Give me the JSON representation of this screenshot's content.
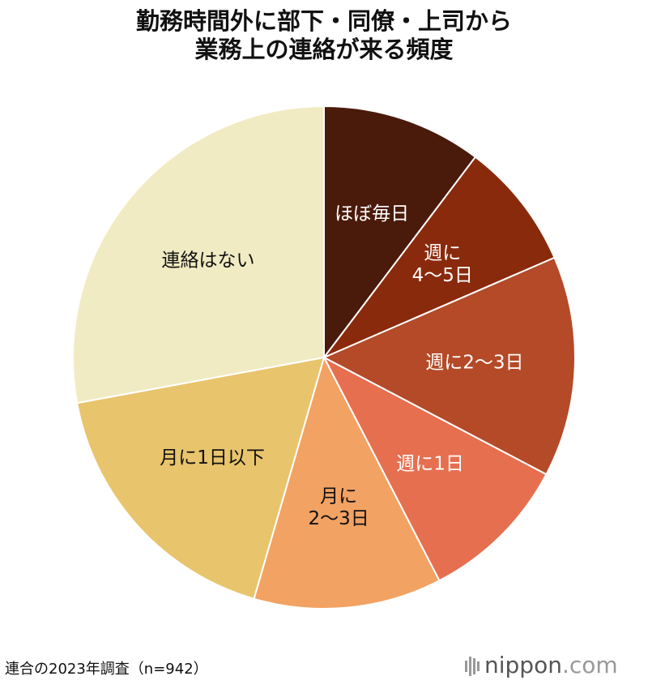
{
  "chart_data": {
    "type": "pie",
    "title": "勤務時間外に部下・同僚・上司から\n業務上の連絡が来る頻度",
    "categories": [
      "ほぼ毎日",
      "週に\n4〜5日",
      "週に2〜3日",
      "週に1日",
      "月に\n2〜3日",
      "月に1日以下",
      "連絡はない"
    ],
    "values": [
      10.3,
      8.2,
      14.2,
      9.7,
      12.1,
      17.6,
      27.9
    ],
    "colors": [
      "#4a1a0b",
      "#8a2a0c",
      "#b44a28",
      "#e66f50",
      "#f2a262",
      "#e8c46c",
      "#f1ebc3"
    ],
    "source": "連合の2023年調査（n=942）",
    "brand": "nippon",
    "brand_suffix": ".com"
  }
}
